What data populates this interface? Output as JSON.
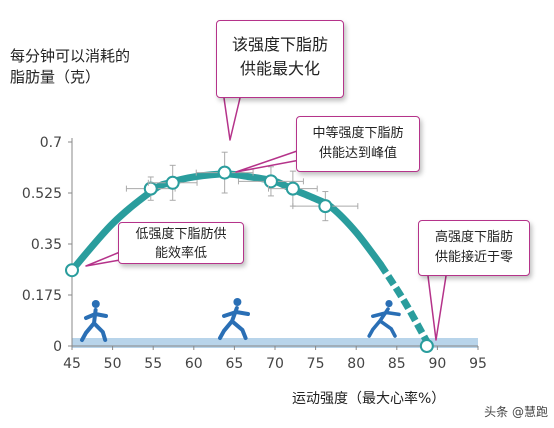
{
  "chart_data": {
    "type": "line",
    "title": "",
    "ylabel": "每分钟可以消耗的\n脂肪量（克）",
    "xlabel": "运动强度（最大心率%）",
    "xlim": [
      45,
      95
    ],
    "ylim": [
      0,
      0.7
    ],
    "x_ticks": [
      "45",
      "50",
      "55",
      "60",
      "65",
      "70",
      "75",
      "80",
      "85",
      "90",
      "95"
    ],
    "y_ticks": [
      "0",
      "0.175",
      "0.35",
      "0.525",
      "0.7"
    ],
    "curve": {
      "x": [
        45,
        50,
        55,
        57,
        60,
        64,
        67,
        70,
        72,
        75,
        77,
        80,
        83,
        86,
        89
      ],
      "y": [
        0.26,
        0.42,
        0.535,
        0.56,
        0.58,
        0.59,
        0.58,
        0.565,
        0.54,
        0.505,
        0.475,
        0.39,
        0.28,
        0.15,
        0.0
      ],
      "dashed_from_x": 81
    },
    "points": [
      {
        "x": 45,
        "y": 0.26,
        "xerr": 0,
        "yerr": 0
      },
      {
        "x": 54.7,
        "y": 0.54,
        "xerr": 3,
        "yerr": 0.04
      },
      {
        "x": 57.4,
        "y": 0.56,
        "xerr": 3,
        "yerr": 0.06
      },
      {
        "x": 63.8,
        "y": 0.595,
        "xerr": 3.5,
        "yerr": 0.07
      },
      {
        "x": 69.5,
        "y": 0.565,
        "xerr": 4,
        "yerr": 0.05
      },
      {
        "x": 72.2,
        "y": 0.54,
        "xerr": 3,
        "yerr": 0.06
      },
      {
        "x": 76.2,
        "y": 0.48,
        "xerr": 4,
        "yerr": 0.05
      },
      {
        "x": 88.7,
        "y": 0.0,
        "xerr": 0,
        "yerr": 0
      }
    ],
    "grid": false
  },
  "annotations": {
    "peak": "该强度下脂肪\n供能最大化",
    "moderate": "中等强度下脂肪\n供能达到峰值",
    "low": "低强度下脂肪供\n能效率低",
    "high": "高强度下脂肪\n供能接近于零"
  },
  "watermark": "头条 @慧跑",
  "colors": {
    "curve": "#2a9d9d",
    "callout_border": "#b5338a",
    "runner": "#2a6fb5",
    "band": "#b8d4ea"
  }
}
